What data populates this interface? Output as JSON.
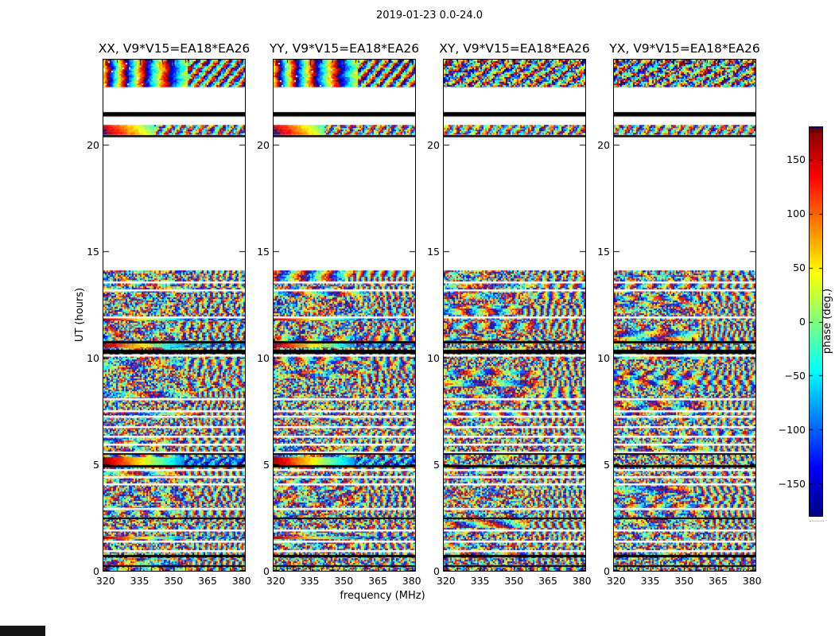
{
  "figure": {
    "title": "2019-01-23 0.0-24.0",
    "xlabel": "frequency (MHz)",
    "ylabel": "UT (hours)",
    "colorbar_label": "phase (deg.)"
  },
  "chart_data": {
    "type": "heatmap",
    "title": "2019-01-23 0.0-24.0",
    "xlabel": "frequency (MHz)",
    "ylabel": "UT (hours)",
    "grid": false,
    "panels": [
      {
        "title": "XX, V9*V15=EA18*EA26",
        "pol": "XX",
        "coherent": true
      },
      {
        "title": "YY, V9*V15=EA18*EA26",
        "pol": "YY",
        "coherent": true
      },
      {
        "title": "XY, V9*V15=EA18*EA26",
        "pol": "XY",
        "coherent": false
      },
      {
        "title": "YX, V9*V15=EA18*EA26",
        "pol": "YX",
        "coherent": false
      }
    ],
    "x_ticks": [
      320,
      335,
      350,
      365,
      380
    ],
    "x_minor_ticks": [
      325,
      330,
      340,
      345,
      355,
      360,
      370,
      375
    ],
    "xlim": [
      319,
      381.5
    ],
    "y_ticks": [
      20,
      15,
      10,
      5,
      0
    ],
    "ylim": [
      0,
      24
    ],
    "colorbar": {
      "label": "phase (deg.)",
      "colormap": "jet",
      "vmin": -180,
      "vmax": 180,
      "ticks": [
        150,
        100,
        50,
        0,
        -50,
        -100,
        -150
      ],
      "ticks_display": [
        "150",
        "100",
        "50",
        "0",
        "−50",
        "−100",
        "−150"
      ]
    },
    "time_bands": [
      {
        "from": 22.7,
        "to": 24.0,
        "type": "calibrator"
      },
      {
        "from": 21.62,
        "to": 22.7,
        "type": "gap"
      },
      {
        "from": 21.33,
        "to": 21.55,
        "type": "flagged"
      },
      {
        "from": 20.93,
        "to": 21.33,
        "type": "gap"
      },
      {
        "from": 20.47,
        "to": 20.93,
        "type": "scan"
      },
      {
        "from": 20.36,
        "to": 20.47,
        "type": "flagged"
      },
      {
        "from": 14.1,
        "to": 20.36,
        "type": "gap"
      },
      {
        "from": 0.0,
        "to": 14.1,
        "type": "data"
      }
    ],
    "data_gaps_hours": [
      13.6,
      13.23,
      11.95,
      10.8,
      10.17,
      8.1,
      7.55,
      7.28,
      6.8,
      6.33,
      5.98,
      5.61,
      4.78,
      4.45,
      4.11,
      2.95,
      1.94,
      1.4,
      0.97
    ],
    "flagged_rows": [
      {
        "t": 10.72,
        "h": 0.1
      },
      {
        "t": 10.3,
        "h": 0.19
      },
      {
        "t": 5.49,
        "h": 0.08
      },
      {
        "t": 4.9,
        "h": 0.1
      },
      {
        "t": 2.47,
        "h": 0.08
      },
      {
        "t": 0.68,
        "h": 0.1
      },
      {
        "t": 0.22,
        "h": 0.06
      }
    ],
    "coherent_rows": [
      {
        "t": 11.83,
        "h": 0.15
      },
      {
        "t": 10.57,
        "h": 0.18
      },
      {
        "t": 5.15,
        "h": 0.38
      },
      {
        "t": 1.55,
        "h": 0.12
      }
    ]
  },
  "colors": {
    "colormap_dark_low": "#00008f",
    "colormap_dark_high": "#800000",
    "axis": "#000000",
    "background": "#ffffff"
  }
}
